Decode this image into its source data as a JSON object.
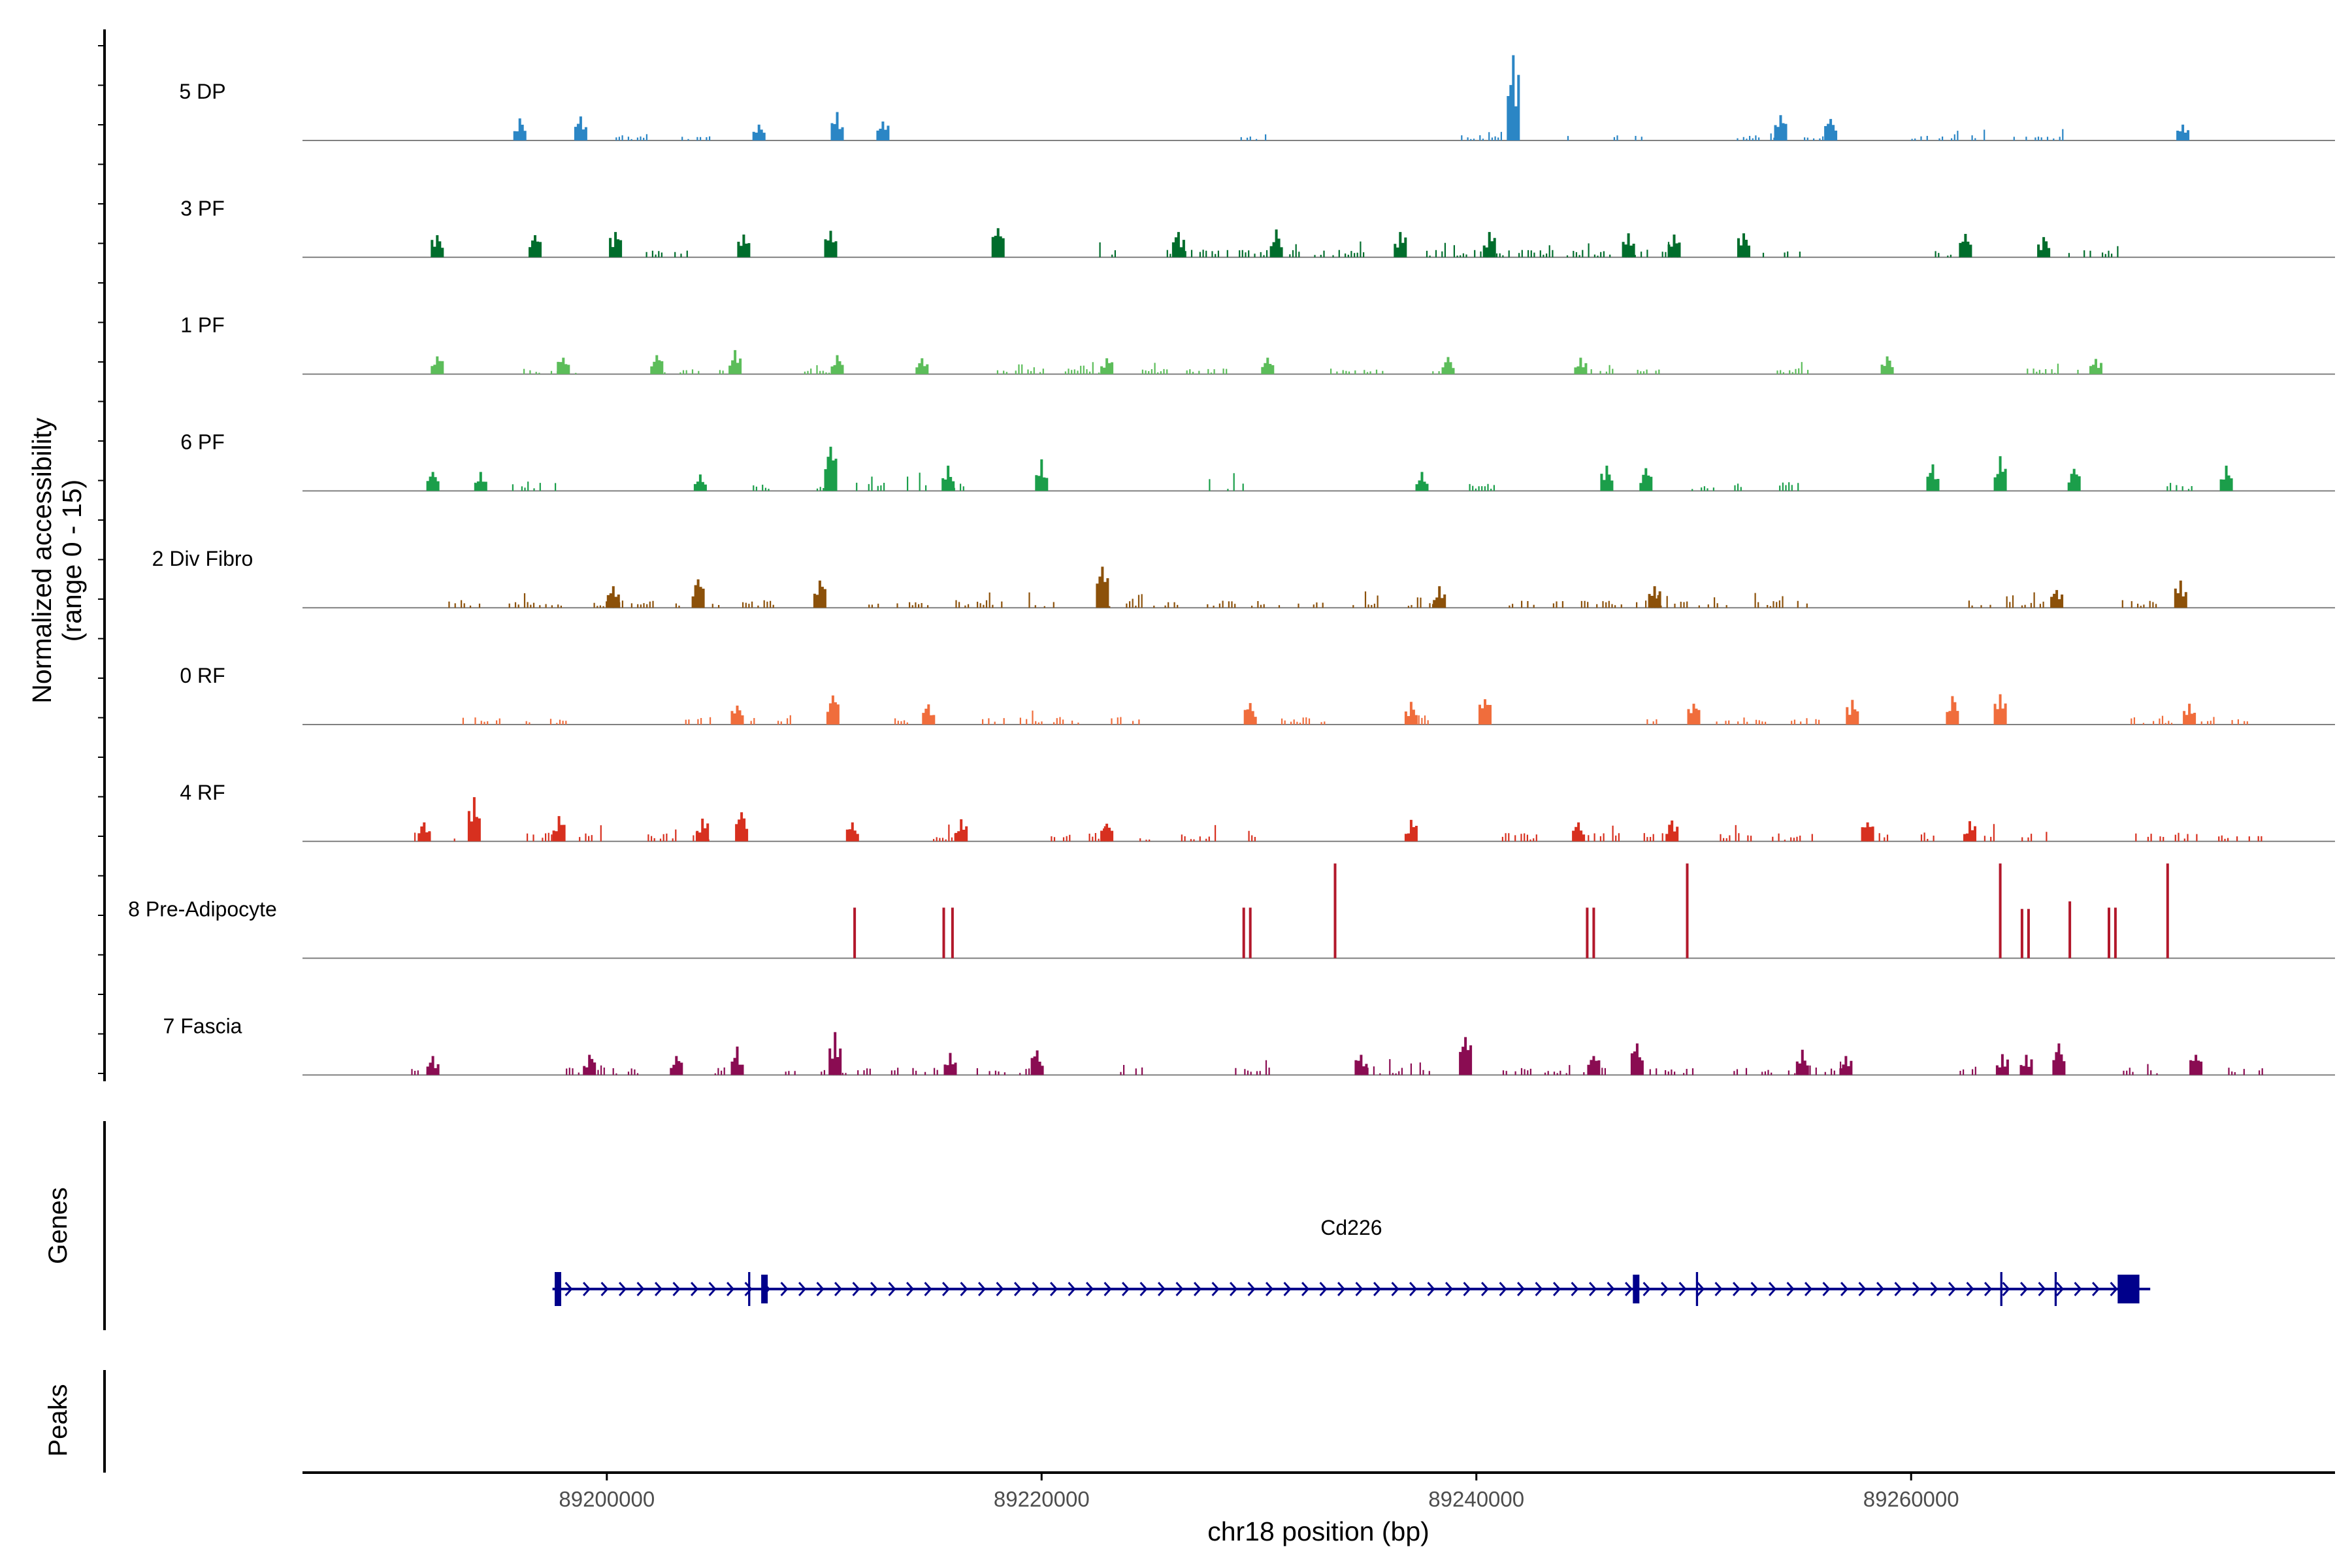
{
  "chart_data": {
    "type": "coverage",
    "chromosome": "chr18",
    "xlabel": "chr18 position (bp)",
    "xlim": [
      89186000,
      89279500
    ],
    "x_ticks": [
      89200000,
      89220000,
      89240000,
      89260000
    ],
    "x_tick_labels": [
      "89200000",
      "89220000",
      "89240000",
      "89260000"
    ],
    "ylabel_line1": "Normalized accessibility",
    "ylabel_line2": "(range 0 - 15)",
    "ylim": [
      0,
      15
    ],
    "panels": {
      "genes_label": "Genes",
      "peaks_label": "Peaks"
    },
    "tracks": [
      {
        "name": "5 DP",
        "color": "#2b86c5",
        "density": 0.35,
        "level": 0.28,
        "peaks": [
          [
            89196000,
            3.5
          ],
          [
            89198800,
            3.8
          ],
          [
            89207000,
            2.5
          ],
          [
            89210600,
            4.5
          ],
          [
            89212700,
            3.0
          ],
          [
            89241700,
            13.5
          ],
          [
            89254000,
            4.0
          ],
          [
            89256300,
            3.4
          ],
          [
            89272500,
            2.5
          ]
        ]
      },
      {
        "name": "3 PF",
        "color": "#006d2c",
        "density": 0.6,
        "level": 0.4,
        "peaks": [
          [
            89192200,
            3.5
          ],
          [
            89196700,
            3.5
          ],
          [
            89200400,
            4.0
          ],
          [
            89206300,
            3.6
          ],
          [
            89210300,
            4.2
          ],
          [
            89218000,
            4.6
          ],
          [
            89226300,
            4.0
          ],
          [
            89230800,
            4.4
          ],
          [
            89236500,
            4.0
          ],
          [
            89240600,
            4.0
          ],
          [
            89247000,
            3.8
          ],
          [
            89249100,
            3.6
          ],
          [
            89252300,
            3.8
          ],
          [
            89262500,
            3.7
          ],
          [
            89266100,
            3.2
          ]
        ]
      },
      {
        "name": "1 PF",
        "color": "#5cbd5a",
        "density": 0.4,
        "level": 0.3,
        "peaks": [
          [
            89192200,
            2.8
          ],
          [
            89198000,
            2.6
          ],
          [
            89202300,
            3.0
          ],
          [
            89205900,
            3.8
          ],
          [
            89210600,
            3.0
          ],
          [
            89214500,
            2.5
          ],
          [
            89223000,
            2.5
          ],
          [
            89230400,
            2.6
          ],
          [
            89238700,
            2.7
          ],
          [
            89244800,
            2.6
          ],
          [
            89258900,
            2.8
          ],
          [
            89268500,
            2.4
          ]
        ]
      },
      {
        "name": "6 PF",
        "color": "#1b9e4a",
        "density": 0.35,
        "level": 0.5,
        "peaks": [
          [
            89192000,
            3.0
          ],
          [
            89194200,
            3.0
          ],
          [
            89204300,
            2.6
          ],
          [
            89210300,
            7.0
          ],
          [
            89215700,
            4.0
          ],
          [
            89220000,
            5.0
          ],
          [
            89237500,
            3.0
          ],
          [
            89246000,
            4.0
          ],
          [
            89247800,
            3.6
          ],
          [
            89261000,
            4.2
          ],
          [
            89264100,
            5.5
          ],
          [
            89267500,
            3.5
          ],
          [
            89274500,
            4.0
          ]
        ]
      },
      {
        "name": "2 Div Fibro",
        "color": "#8c510a",
        "density": 0.55,
        "level": 0.4,
        "peaks": [
          [
            89200300,
            3.4
          ],
          [
            89204200,
            4.5
          ],
          [
            89209800,
            4.3
          ],
          [
            89222800,
            6.5
          ],
          [
            89238300,
            3.4
          ],
          [
            89248200,
            3.4
          ],
          [
            89266700,
            2.8
          ],
          [
            89272400,
            4.3
          ]
        ]
      },
      {
        "name": "0 RF",
        "color": "#f06d3c",
        "density": 0.5,
        "level": 0.4,
        "peaks": [
          [
            89206000,
            3.0
          ],
          [
            89210400,
            4.6
          ],
          [
            89214800,
            3.2
          ],
          [
            89229600,
            3.4
          ],
          [
            89237000,
            3.6
          ],
          [
            89240400,
            4.0
          ],
          [
            89250000,
            3.3
          ],
          [
            89257300,
            3.9
          ],
          [
            89261900,
            4.5
          ],
          [
            89264100,
            4.8
          ],
          [
            89272800,
            3.3
          ]
        ]
      },
      {
        "name": "4 RF",
        "color": "#d7301f",
        "density": 0.5,
        "level": 0.45,
        "peaks": [
          [
            89191600,
            3.0
          ],
          [
            89193900,
            7.0
          ],
          [
            89197800,
            4.0
          ],
          [
            89204400,
            3.6
          ],
          [
            89206200,
            4.6
          ],
          [
            89211300,
            3.0
          ],
          [
            89216300,
            3.5
          ],
          [
            89223000,
            2.8
          ],
          [
            89237000,
            3.4
          ],
          [
            89244700,
            3.0
          ],
          [
            89249000,
            3.3
          ],
          [
            89258000,
            3.0
          ],
          [
            89262700,
            3.2
          ]
        ]
      },
      {
        "name": "8 Pre-Adipocyte",
        "color": "#b2182b",
        "density": 0,
        "level": 0,
        "peaks": [
          [
            89211400,
            8.0
          ],
          [
            89215500,
            8.0
          ],
          [
            89215900,
            8.0
          ],
          [
            89229300,
            8.0
          ],
          [
            89229600,
            8.0
          ],
          [
            89233500,
            15.0
          ],
          [
            89245100,
            8.0
          ],
          [
            89245400,
            8.0
          ],
          [
            89249700,
            15.0
          ],
          [
            89264100,
            15.0
          ],
          [
            89265100,
            7.8
          ],
          [
            89265400,
            7.8
          ],
          [
            89267300,
            9.0
          ],
          [
            89269100,
            8.0
          ],
          [
            89269400,
            8.0
          ],
          [
            89271800,
            15.0
          ]
        ]
      },
      {
        "name": "7 Fascia",
        "color": "#8a0c52",
        "density": 0.5,
        "level": 0.4,
        "peaks": [
          [
            89192000,
            3.0
          ],
          [
            89199200,
            3.2
          ],
          [
            89203200,
            3.0
          ],
          [
            89206000,
            4.5
          ],
          [
            89210500,
            6.8
          ],
          [
            89215800,
            3.5
          ],
          [
            89219800,
            3.9
          ],
          [
            89234700,
            3.2
          ],
          [
            89239500,
            6.0
          ],
          [
            89245400,
            3.0
          ],
          [
            89247400,
            5.0
          ],
          [
            89255000,
            4.0
          ],
          [
            89257000,
            3.0
          ],
          [
            89264200,
            3.3
          ],
          [
            89265300,
            3.2
          ],
          [
            89266800,
            5.0
          ],
          [
            89273100,
            3.2
          ]
        ]
      }
    ],
    "gene": {
      "name": "Cd226",
      "color": "#00008b",
      "strand": "+",
      "start": 89197500,
      "end": 89271000,
      "exons": [
        [
          89197600,
          89197900,
          "thin"
        ],
        [
          89206500,
          89206600,
          "thin"
        ],
        [
          89207100,
          89207400,
          "thick"
        ],
        [
          89247200,
          89247500,
          "thick"
        ],
        [
          89250100,
          89250200,
          "thin"
        ],
        [
          89264100,
          89264200,
          "thin"
        ],
        [
          89266600,
          89266700,
          "thin"
        ],
        [
          89269500,
          89270500,
          "thick"
        ]
      ]
    }
  }
}
